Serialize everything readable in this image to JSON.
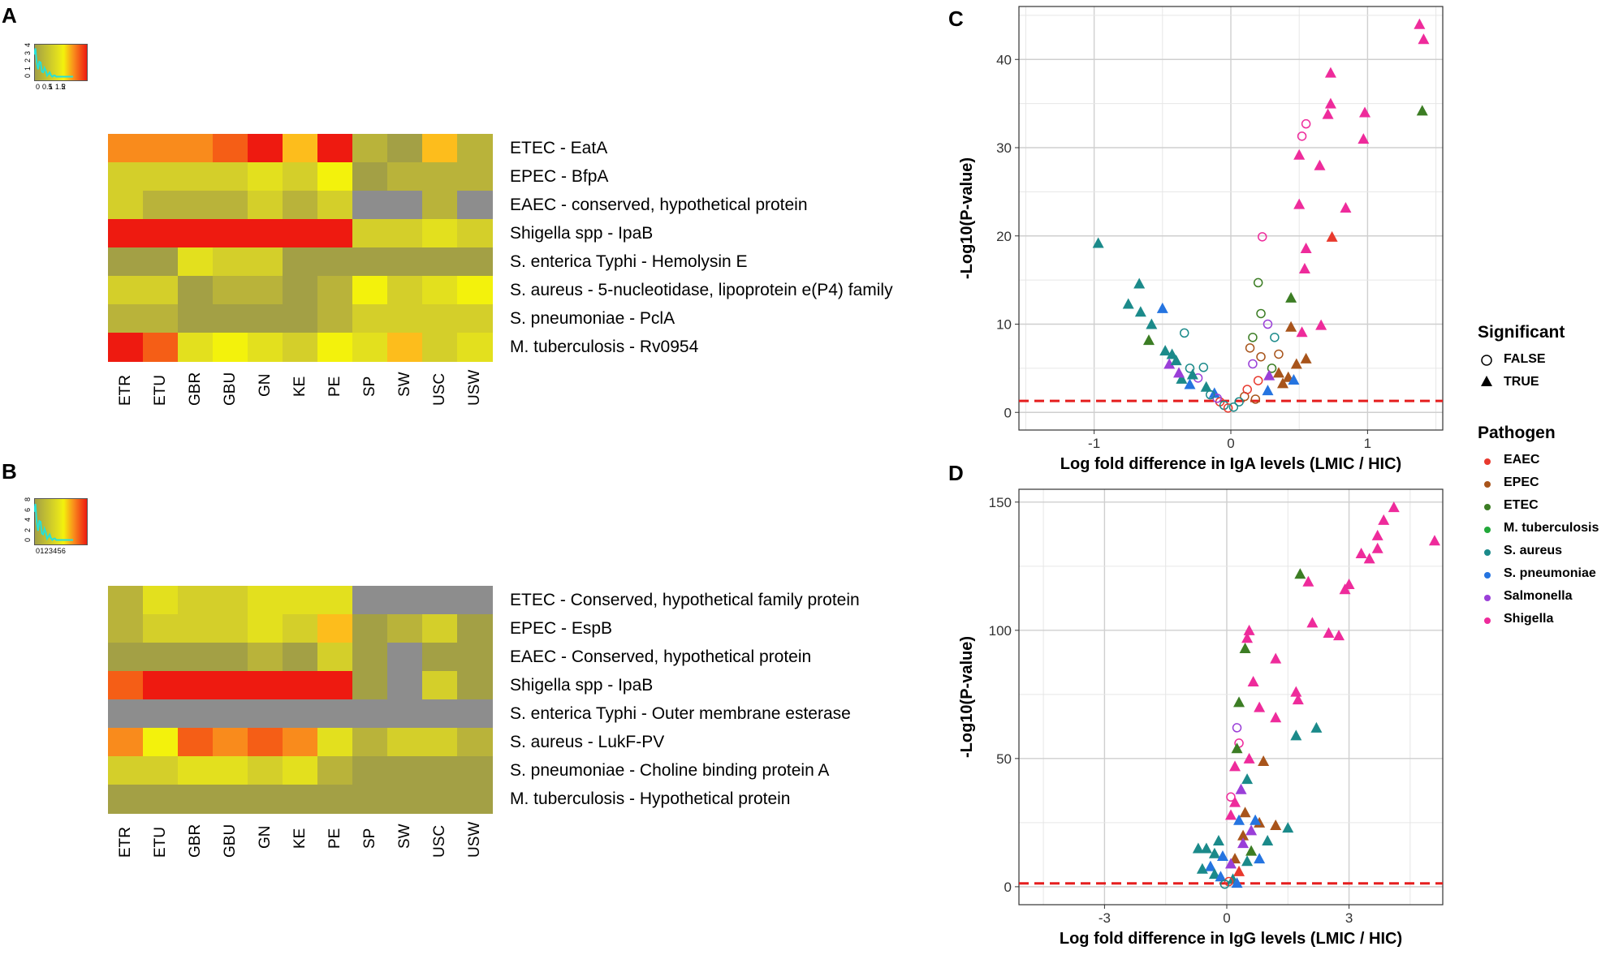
{
  "panels": {
    "a": "A",
    "b": "B",
    "c": "C",
    "d": "D"
  },
  "colors": {
    "grey": "#8d8d8d",
    "olive": "#a3a045",
    "olive2": "#b9b33a",
    "yellow1": "#d4cf2a",
    "yellow2": "#e3e01e",
    "yellow3": "#f3f20c",
    "orange1": "#fdbd1c",
    "orange2": "#f98b1c",
    "orange3": "#f55e16",
    "red": "#ee1a10",
    "cyan": "#27e0d8",
    "EAEC": "#e8392e",
    "EPEC": "#a8541b",
    "ETEC": "#3c7d24",
    "M. tuberculosis": "#22a83a",
    "S. aureus": "#1b8a8a",
    "S. pneumoniae": "#2574e0",
    "Salmonella": "#9a3fd8",
    "Shigella": "#ee2b9b",
    "threshold": "#e51e1e"
  },
  "chart_data": [
    {
      "type": "heatmap",
      "panel": "A",
      "columns": [
        "ETR",
        "ETU",
        "GBR",
        "GBU",
        "GN",
        "KE",
        "PE",
        "SP",
        "SW",
        "USC",
        "USW"
      ],
      "rows": [
        "ETEC - EatA",
        "EPEC - BfpA",
        "EAEC - conserved, hypothetical protein",
        "Shigella spp - IpaB",
        "S. enterica Typhi - Hemolysin E",
        "S. aureus - 5-nucleotidase, lipoprotein e(P4) family",
        "S. pneumoniae - PclA",
        "M. tuberculosis - Rv0954"
      ],
      "values": [
        [
          1.4,
          1.35,
          1.3,
          1.5,
          1.8,
          1.1,
          1.9,
          0.5,
          0.3,
          1.0,
          0.45
        ],
        [
          0.65,
          0.7,
          0.65,
          0.65,
          0.8,
          0.65,
          0.85,
          0.4,
          0.45,
          0.55,
          0.5
        ],
        [
          0.6,
          0.55,
          0.5,
          0.55,
          0.6,
          0.55,
          0.65,
          0.1,
          0.1,
          0.5,
          0.1
        ],
        [
          1.9,
          1.9,
          1.95,
          1.95,
          1.95,
          1.7,
          1.85,
          0.7,
          0.6,
          0.75,
          0.65
        ],
        [
          0.4,
          0.35,
          0.75,
          0.7,
          0.65,
          0.4,
          0.4,
          0.35,
          0.35,
          0.35,
          0.35
        ],
        [
          0.65,
          0.6,
          0.4,
          0.45,
          0.5,
          0.4,
          0.55,
          0.85,
          0.7,
          0.75,
          0.85
        ],
        [
          0.45,
          0.55,
          0.35,
          0.4,
          0.4,
          0.35,
          0.5,
          0.6,
          0.65,
          0.65,
          0.6
        ],
        [
          1.85,
          1.6,
          0.8,
          0.85,
          0.75,
          0.7,
          0.85,
          0.75,
          1.0,
          0.7,
          0.75
        ]
      ],
      "key": {
        "ticks_x": [
          "0",
          "0.5",
          "1",
          "1.5",
          "2"
        ],
        "ticks_y": [
          "0",
          "1",
          "2",
          "3",
          "4"
        ]
      }
    },
    {
      "type": "heatmap",
      "panel": "B",
      "columns": [
        "ETR",
        "ETU",
        "GBR",
        "GBU",
        "GN",
        "KE",
        "PE",
        "SP",
        "SW",
        "USC",
        "USW"
      ],
      "rows": [
        "ETEC - Conserved, hypothetical family protein",
        "EPEC - EspB",
        "EAEC - Conserved, hypothetical protein",
        "Shigella spp - IpaB",
        "S. enterica Typhi - Outer membrane esterase",
        "S. aureus - LukF-PV",
        "S. pneumoniae - Choline binding protein A",
        "M. tuberculosis - Hypothetical protein"
      ],
      "values": [
        [
          1.6,
          2.2,
          2.1,
          2.1,
          2.3,
          2.2,
          2.4,
          0.1,
          0.1,
          0.1,
          0.1
        ],
        [
          1.5,
          2.1,
          1.9,
          2.0,
          2.3,
          2.1,
          3.0,
          1.2,
          1.4,
          1.8,
          1.3
        ],
        [
          1.2,
          1.3,
          1.3,
          1.3,
          1.4,
          1.3,
          1.9,
          0.8,
          0.6,
          1.0,
          0.8
        ],
        [
          5.0,
          5.5,
          5.5,
          5.5,
          5.5,
          5.5,
          5.5,
          1.2,
          0.6,
          2.0,
          1.2
        ],
        [
          0.1,
          0.6,
          0.6,
          0.6,
          0.6,
          0.6,
          0.6,
          0.1,
          0.1,
          0.1,
          0.1
        ],
        [
          3.6,
          2.9,
          4.4,
          4.1,
          4.6,
          4.1,
          2.2,
          1.6,
          1.8,
          1.8,
          1.5
        ],
        [
          1.9,
          2.1,
          2.3,
          2.3,
          1.9,
          2.2,
          1.6,
          1.3,
          1.3,
          1.3,
          1.3
        ],
        [
          1.0,
          1.0,
          1.0,
          1.0,
          1.0,
          1.0,
          1.0,
          1.0,
          1.0,
          1.0,
          1.0
        ]
      ],
      "key": {
        "ticks_x": [
          "0",
          "1",
          "2",
          "3",
          "4",
          "5",
          "6"
        ],
        "ticks_y": [
          "0",
          "2",
          "4",
          "6",
          "8"
        ]
      }
    },
    {
      "type": "scatter",
      "panel": "C",
      "xlabel": "Log fold difference in IgA levels (LMIC / HIC)",
      "ylabel": "-Log10(P-value)",
      "xlim": [
        -1.55,
        1.55
      ],
      "ylim": [
        -2,
        46
      ],
      "xticks": [
        -1,
        0,
        1
      ],
      "yticks": [
        0,
        10,
        20,
        30,
        40
      ],
      "threshold": 1.3,
      "points": [
        [
          1.38,
          44,
          "Shigella",
          true
        ],
        [
          1.41,
          42.3,
          "Shigella",
          true
        ],
        [
          1.4,
          34.2,
          "ETEC",
          true
        ],
        [
          0.73,
          38.5,
          "Shigella",
          true
        ],
        [
          0.73,
          35,
          "Shigella",
          true
        ],
        [
          0.71,
          33.8,
          "Shigella",
          true
        ],
        [
          0.55,
          32.7,
          "Shigella",
          false
        ],
        [
          0.52,
          31.3,
          "Shigella",
          false
        ],
        [
          0.98,
          34,
          "Shigella",
          true
        ],
        [
          0.97,
          31,
          "Shigella",
          true
        ],
        [
          0.65,
          28,
          "Shigella",
          true
        ],
        [
          0.5,
          29.2,
          "Shigella",
          true
        ],
        [
          0.5,
          23.6,
          "Shigella",
          true
        ],
        [
          0.84,
          23.2,
          "Shigella",
          true
        ],
        [
          0.74,
          19.9,
          "EAEC",
          true
        ],
        [
          0.55,
          18.6,
          "Shigella",
          true
        ],
        [
          0.54,
          16.3,
          "Shigella",
          true
        ],
        [
          0.66,
          9.9,
          "Shigella",
          true
        ],
        [
          0.52,
          9.1,
          "Shigella",
          true
        ],
        [
          0.23,
          19.9,
          "Shigella",
          false
        ],
        [
          0.44,
          13,
          "ETEC",
          true
        ],
        [
          0.44,
          9.7,
          "EPEC",
          true
        ],
        [
          0.55,
          6.1,
          "EPEC",
          true
        ],
        [
          0.48,
          5.5,
          "EPEC",
          true
        ],
        [
          -0.97,
          19.2,
          "S. aureus",
          true
        ],
        [
          -0.67,
          14.6,
          "S. aureus",
          true
        ],
        [
          -0.75,
          12.3,
          "S. aureus",
          true
        ],
        [
          -0.5,
          11.8,
          "S. pneumoniae",
          true
        ],
        [
          -0.66,
          11.4,
          "S. aureus",
          true
        ],
        [
          -0.58,
          10,
          "S. aureus",
          true
        ],
        [
          -0.6,
          8.2,
          "ETEC",
          true
        ],
        [
          -0.48,
          7,
          "S. aureus",
          true
        ],
        [
          -0.43,
          6.6,
          "S. aureus",
          true
        ],
        [
          -0.45,
          5.5,
          "Salmonella",
          true
        ],
        [
          -0.4,
          5.9,
          "S. aureus",
          true
        ],
        [
          -0.34,
          9,
          "S. aureus",
          false
        ],
        [
          -0.3,
          5,
          "S. aureus",
          false
        ],
        [
          -0.2,
          5.1,
          "S. aureus",
          false
        ],
        [
          -0.36,
          3.8,
          "S. aureus",
          true
        ],
        [
          -0.3,
          3.2,
          "S. pneumoniae",
          true
        ],
        [
          -0.24,
          3.9,
          "Salmonella",
          false
        ],
        [
          -0.18,
          2.9,
          "S. aureus",
          true
        ],
        [
          -0.12,
          2.2,
          "S. pneumoniae",
          true
        ],
        [
          -0.08,
          1.2,
          "EAEC",
          false
        ],
        [
          -0.05,
          0.8,
          "S. aureus",
          false
        ],
        [
          -0.02,
          0.5,
          "EAEC",
          false
        ],
        [
          0.02,
          0.6,
          "S. aureus",
          false
        ],
        [
          -0.1,
          1.6,
          "Salmonella",
          false
        ],
        [
          -0.15,
          2,
          "S. aureus",
          false
        ],
        [
          -0.28,
          4.3,
          "S. aureus",
          true
        ],
        [
          -0.38,
          4.5,
          "Salmonella",
          true
        ],
        [
          0.2,
          14.7,
          "ETEC",
          false
        ],
        [
          0.22,
          11.2,
          "ETEC",
          false
        ],
        [
          0.27,
          10,
          "Salmonella",
          false
        ],
        [
          0.32,
          8.5,
          "S. aureus",
          false
        ],
        [
          0.16,
          8.5,
          "ETEC",
          false
        ],
        [
          0.14,
          7.3,
          "EPEC",
          false
        ],
        [
          0.22,
          6.3,
          "EPEC",
          false
        ],
        [
          0.16,
          5.5,
          "Salmonella",
          false
        ],
        [
          0.3,
          5,
          "ETEC",
          false
        ],
        [
          0.35,
          6.6,
          "EPEC",
          false
        ],
        [
          0.38,
          3.3,
          "EPEC",
          true
        ],
        [
          0.27,
          2.5,
          "S. pneumoniae",
          true
        ],
        [
          0.1,
          1.8,
          "EPEC",
          false
        ],
        [
          0.12,
          2.6,
          "EAEC",
          false
        ],
        [
          0.2,
          3.6,
          "EAEC",
          false
        ],
        [
          0.28,
          4.2,
          "Salmonella",
          true
        ],
        [
          0.06,
          1.2,
          "S. aureus",
          false
        ],
        [
          0.18,
          1.5,
          "EPEC",
          false
        ],
        [
          0.35,
          4.5,
          "EPEC",
          true
        ],
        [
          0.42,
          4,
          "EPEC",
          true
        ],
        [
          0.46,
          3.7,
          "S. pneumoniae",
          true
        ]
      ]
    },
    {
      "type": "scatter",
      "panel": "D",
      "xlabel": "Log fold difference in IgG levels (LMIC / HIC)",
      "ylabel": "-Log10(P-value)",
      "xlim": [
        -5.1,
        5.3
      ],
      "ylim": [
        -7,
        155
      ],
      "xticks": [
        -3,
        0,
        3
      ],
      "yticks": [
        0,
        50,
        100,
        150
      ],
      "threshold": 1.3,
      "points": [
        [
          4.1,
          148,
          "Shigella",
          true
        ],
        [
          3.85,
          143,
          "Shigella",
          true
        ],
        [
          3.7,
          137,
          "Shigella",
          true
        ],
        [
          3.7,
          132,
          "Shigella",
          true
        ],
        [
          5.1,
          135,
          "Shigella",
          true
        ],
        [
          3.3,
          130,
          "Shigella",
          true
        ],
        [
          3.5,
          128,
          "Shigella",
          true
        ],
        [
          3.0,
          118,
          "Shigella",
          true
        ],
        [
          2.9,
          116,
          "Shigella",
          true
        ],
        [
          1.8,
          122,
          "ETEC",
          true
        ],
        [
          2.0,
          119,
          "Shigella",
          true
        ],
        [
          2.1,
          103,
          "Shigella",
          true
        ],
        [
          2.5,
          99,
          "Shigella",
          true
        ],
        [
          2.75,
          98,
          "Shigella",
          true
        ],
        [
          0.55,
          100,
          "Shigella",
          true
        ],
        [
          0.5,
          97,
          "Shigella",
          true
        ],
        [
          0.45,
          93,
          "ETEC",
          true
        ],
        [
          1.2,
          89,
          "Shigella",
          true
        ],
        [
          0.65,
          80,
          "Shigella",
          true
        ],
        [
          1.7,
          76,
          "Shigella",
          true
        ],
        [
          1.75,
          73,
          "Shigella",
          true
        ],
        [
          0.3,
          72,
          "ETEC",
          true
        ],
        [
          0.8,
          70,
          "Shigella",
          true
        ],
        [
          1.2,
          66,
          "Shigella",
          true
        ],
        [
          2.2,
          62,
          "S. aureus",
          true
        ],
        [
          1.7,
          59,
          "S. aureus",
          true
        ],
        [
          0.25,
          62,
          "Salmonella",
          false
        ],
        [
          0.3,
          56,
          "Shigella",
          false
        ],
        [
          0.25,
          54,
          "ETEC",
          true
        ],
        [
          0.55,
          50,
          "Shigella",
          true
        ],
        [
          0.9,
          49,
          "EPEC",
          true
        ],
        [
          0.2,
          47,
          "Shigella",
          true
        ],
        [
          0.5,
          42,
          "S. aureus",
          true
        ],
        [
          0.35,
          38,
          "Salmonella",
          true
        ],
        [
          0.1,
          35,
          "Shigella",
          false
        ],
        [
          0.2,
          33,
          "Shigella",
          true
        ],
        [
          0.45,
          29,
          "EPEC",
          true
        ],
        [
          0.1,
          28,
          "Shigella",
          true
        ],
        [
          0.3,
          26,
          "S. pneumoniae",
          true
        ],
        [
          0.8,
          25,
          "EPEC",
          true
        ],
        [
          1.2,
          24,
          "EPEC",
          true
        ],
        [
          1.5,
          23,
          "S. aureus",
          true
        ],
        [
          0.6,
          22,
          "Salmonella",
          true
        ],
        [
          0.7,
          26,
          "S. pneumoniae",
          true
        ],
        [
          0.4,
          20,
          "EPEC",
          true
        ],
        [
          -0.2,
          18,
          "S. aureus",
          true
        ],
        [
          -0.7,
          15,
          "S. aureus",
          true
        ],
        [
          -0.5,
          15,
          "S. aureus",
          true
        ],
        [
          -0.3,
          13,
          "S. aureus",
          true
        ],
        [
          -0.1,
          12,
          "S. pneumoniae",
          true
        ],
        [
          0.2,
          11,
          "EPEC",
          true
        ],
        [
          0.5,
          10,
          "S. aureus",
          true
        ],
        [
          0.8,
          11,
          "S. pneumoniae",
          true
        ],
        [
          0.1,
          9,
          "Salmonella",
          true
        ],
        [
          -0.4,
          8,
          "S. pneumoniae",
          true
        ],
        [
          -0.6,
          7,
          "S. aureus",
          true
        ],
        [
          -0.3,
          5,
          "S. aureus",
          true
        ],
        [
          -0.15,
          4,
          "S. pneumoniae",
          true
        ],
        [
          0.3,
          6,
          "EAEC",
          true
        ],
        [
          0.15,
          3,
          "S. aureus",
          true
        ],
        [
          0.05,
          2,
          "EAEC",
          false
        ],
        [
          -0.05,
          1,
          "S. aureus",
          false
        ],
        [
          0.25,
          1.5,
          "S. pneumoniae",
          true
        ],
        [
          0.6,
          14,
          "ETEC",
          true
        ],
        [
          0.4,
          17,
          "Salmonella",
          true
        ],
        [
          1.0,
          18,
          "S. aureus",
          true
        ]
      ]
    }
  ],
  "legend": {
    "significant_title": "Significant",
    "significant": [
      "FALSE",
      "TRUE"
    ],
    "pathogen_title": "Pathogen",
    "pathogens": [
      "EAEC",
      "EPEC",
      "ETEC",
      "M. tuberculosis",
      "S. aureus",
      "S. pneumoniae",
      "Salmonella",
      "Shigella"
    ]
  }
}
